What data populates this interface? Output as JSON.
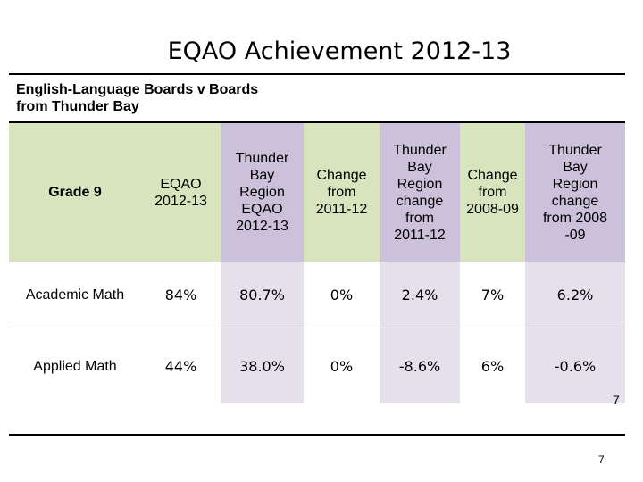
{
  "title": "EQAO Achievement 2012-13",
  "subtitle_lines": [
    "English-Language Boards v Boards",
    "from Thunder Bay"
  ],
  "table": {
    "headers": [
      [
        "Grade 9"
      ],
      [
        "EQAO",
        "2012-13"
      ],
      [
        "Thunder",
        "Bay",
        "Region",
        "EQAO",
        "2012-13"
      ],
      [
        "Change",
        "from",
        "2011-12"
      ],
      [
        "Thunder",
        "Bay",
        "Region",
        "change",
        "from",
        "2011-12"
      ],
      [
        "Change",
        "from",
        "2008-09"
      ],
      [
        "Thunder",
        "Bay",
        "Region",
        "change",
        "from 2008",
        "-09"
      ]
    ],
    "rows": [
      {
        "label": "Academic Math",
        "values": [
          "84%",
          "80.7%",
          "0%",
          "2.4%",
          "7%",
          "6.2%"
        ]
      },
      {
        "label": "Applied Math",
        "values": [
          "44%",
          "38.0%",
          "0%",
          "-8.6%",
          "6%",
          "-0.6%"
        ]
      }
    ]
  },
  "page_number": "7",
  "page_number_footer": "7",
  "colors": {
    "header_green": "#d7e4bd",
    "header_purple": "#ccc1da",
    "column_lavender": "#e5e0ec"
  }
}
